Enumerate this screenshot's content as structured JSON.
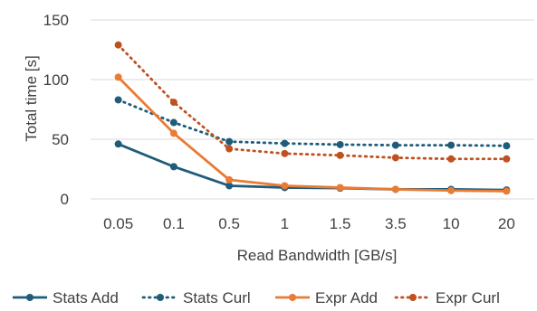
{
  "chart_data": {
    "type": "line",
    "title": "",
    "xlabel": "Read Bandwidth [GB/s]",
    "ylabel": "Total time [s]",
    "categories": [
      "0.05",
      "0.1",
      "0.5",
      "1",
      "1.5",
      "3.5",
      "10",
      "20"
    ],
    "ylim": [
      0,
      150
    ],
    "yticks": [
      "0",
      "50",
      "100",
      "150"
    ],
    "grid": true,
    "legend_position": "bottom",
    "series": [
      {
        "name": "Stats Add",
        "color": "#1f5c7a",
        "style": "solid",
        "values": [
          46,
          27,
          11,
          9.5,
          9,
          8,
          8,
          7.5
        ]
      },
      {
        "name": "Stats Curl",
        "color": "#1f5c7a",
        "style": "dotted",
        "values": [
          83,
          64,
          48,
          46.5,
          45.5,
          45,
          45,
          44.5
        ]
      },
      {
        "name": "Expr Add",
        "color": "#e97b35",
        "style": "solid",
        "values": [
          102,
          55,
          16,
          11,
          9.5,
          8,
          7,
          6.5
        ]
      },
      {
        "name": "Expr Curl",
        "color": "#c0501f",
        "style": "dotted",
        "values": [
          129,
          81,
          42,
          38,
          36.5,
          34.5,
          33.5,
          33.5
        ]
      }
    ]
  }
}
